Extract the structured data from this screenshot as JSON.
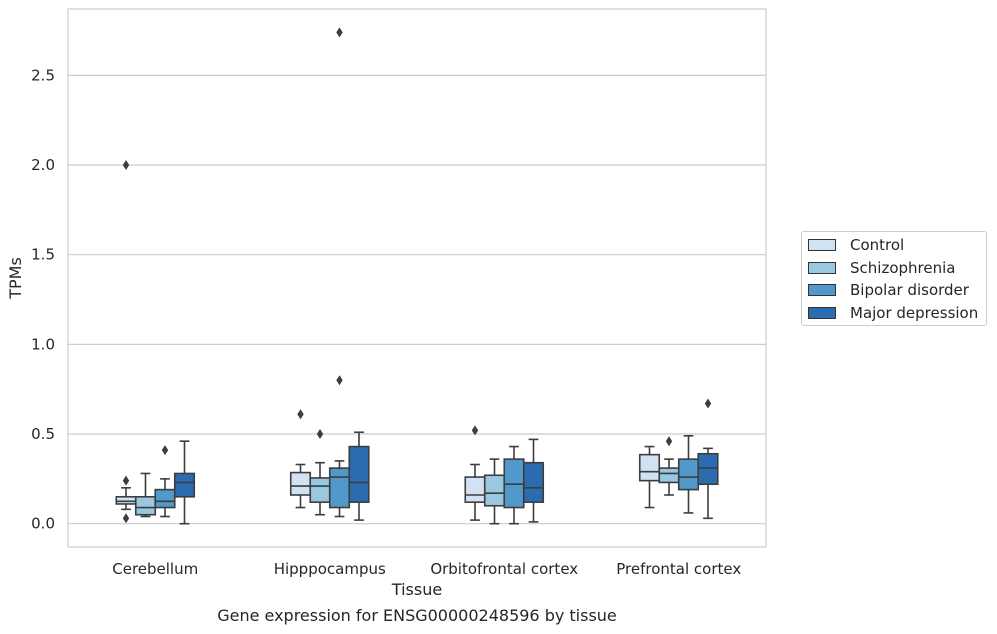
{
  "chart_data": {
    "type": "box",
    "caption": "Gene expression for ENSG00000248596 by tissue",
    "xlabel": "Tissue",
    "ylabel": "TPMs",
    "ylim": [
      -0.13,
      2.87
    ],
    "yticks": [
      0.0,
      0.5,
      1.0,
      1.5,
      2.0,
      2.5
    ],
    "ytick_labels": [
      "0.0",
      "0.5",
      "1.0",
      "1.5",
      "2.0",
      "2.5"
    ],
    "grid": true,
    "legend_position": "right",
    "categories": [
      "Cerebellum",
      "Hipppocampus",
      "Orbitofrontal cortex",
      "Prefrontal cortex"
    ],
    "series": [
      {
        "name": "Control",
        "color": "#d1e2f2",
        "boxes": [
          {
            "whislo": 0.08,
            "q1": 0.11,
            "med": 0.125,
            "q3": 0.15,
            "whishi": 0.2,
            "fliers": [
              2.0,
              0.24,
              0.03
            ]
          },
          {
            "whislo": 0.09,
            "q1": 0.16,
            "med": 0.21,
            "q3": 0.285,
            "whishi": 0.33,
            "fliers": [
              0.61
            ]
          },
          {
            "whislo": 0.02,
            "q1": 0.12,
            "med": 0.16,
            "q3": 0.26,
            "whishi": 0.33,
            "fliers": [
              0.52
            ]
          },
          {
            "whislo": 0.09,
            "q1": 0.24,
            "med": 0.29,
            "q3": 0.385,
            "whishi": 0.43,
            "fliers": []
          }
        ]
      },
      {
        "name": "Schizophrenia",
        "color": "#9ac8e0",
        "boxes": [
          {
            "whislo": 0.04,
            "q1": 0.05,
            "med": 0.09,
            "q3": 0.15,
            "whishi": 0.28,
            "fliers": []
          },
          {
            "whislo": 0.05,
            "q1": 0.12,
            "med": 0.21,
            "q3": 0.255,
            "whishi": 0.34,
            "fliers": [
              0.5
            ]
          },
          {
            "whislo": 0.0,
            "q1": 0.1,
            "med": 0.17,
            "q3": 0.27,
            "whishi": 0.36,
            "fliers": []
          },
          {
            "whislo": 0.16,
            "q1": 0.23,
            "med": 0.28,
            "q3": 0.31,
            "whishi": 0.36,
            "fliers": [
              0.46
            ]
          }
        ]
      },
      {
        "name": "Bipolar disorder",
        "color": "#5299cb",
        "boxes": [
          {
            "whislo": 0.04,
            "q1": 0.09,
            "med": 0.125,
            "q3": 0.19,
            "whishi": 0.25,
            "fliers": [
              0.41
            ]
          },
          {
            "whislo": 0.04,
            "q1": 0.09,
            "med": 0.26,
            "q3": 0.31,
            "whishi": 0.35,
            "fliers": [
              2.74,
              0.8
            ]
          },
          {
            "whislo": 0.0,
            "q1": 0.09,
            "med": 0.22,
            "q3": 0.36,
            "whishi": 0.43,
            "fliers": []
          },
          {
            "whislo": 0.06,
            "q1": 0.19,
            "med": 0.26,
            "q3": 0.36,
            "whishi": 0.49,
            "fliers": []
          }
        ]
      },
      {
        "name": "Major depression",
        "color": "#2b6cb0",
        "boxes": [
          {
            "whislo": 0.0,
            "q1": 0.15,
            "med": 0.23,
            "q3": 0.28,
            "whishi": 0.46,
            "fliers": []
          },
          {
            "whislo": 0.02,
            "q1": 0.12,
            "med": 0.23,
            "q3": 0.43,
            "whishi": 0.51,
            "fliers": []
          },
          {
            "whislo": 0.01,
            "q1": 0.12,
            "med": 0.2,
            "q3": 0.34,
            "whishi": 0.47,
            "fliers": []
          },
          {
            "whislo": 0.03,
            "q1": 0.22,
            "med": 0.31,
            "q3": 0.39,
            "whishi": 0.42,
            "fliers": [
              0.67
            ]
          }
        ]
      }
    ]
  }
}
